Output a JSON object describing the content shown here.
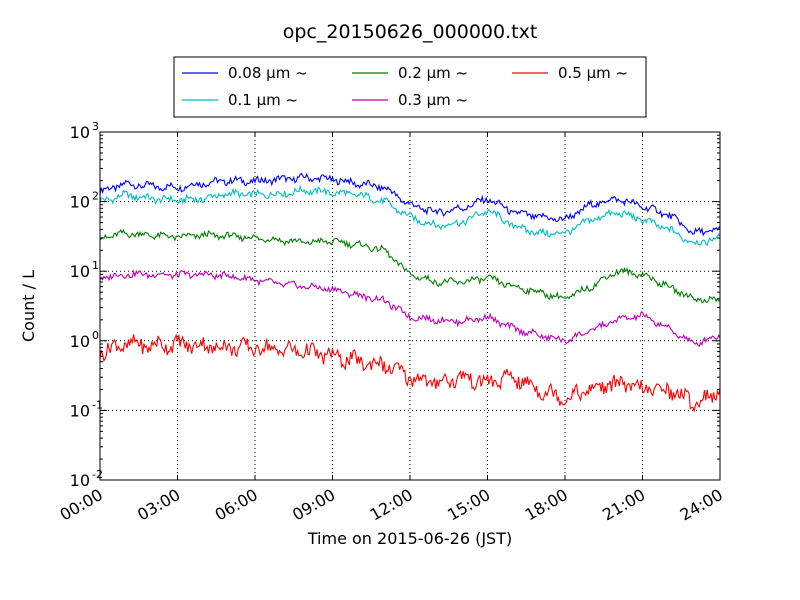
{
  "chart_data": {
    "type": "line",
    "title": "opc_20150626_000000.txt",
    "xlabel": "Time on 2015-06-26 (JST)",
    "ylabel": "Count / L",
    "y_scale": "log",
    "xlim": [
      "00:00",
      "24:00"
    ],
    "ylim": [
      0.01,
      1000
    ],
    "x_ticks": [
      "00:00",
      "03:00",
      "06:00",
      "09:00",
      "12:00",
      "15:00",
      "18:00",
      "21:00",
      "24:00"
    ],
    "y_ticks": [
      {
        "base": "10",
        "exp": "-2",
        "value": 0.01
      },
      {
        "base": "10",
        "exp": "-1",
        "value": 0.1
      },
      {
        "base": "10",
        "exp": "0",
        "value": 1
      },
      {
        "base": "10",
        "exp": "1",
        "value": 10
      },
      {
        "base": "10",
        "exp": "2",
        "value": 100
      },
      {
        "base": "10",
        "exp": "3",
        "value": 1000
      }
    ],
    "grid": true,
    "legend_position": "top-center",
    "x": [
      "00:00",
      "01:00",
      "02:00",
      "03:00",
      "04:00",
      "05:00",
      "06:00",
      "07:00",
      "08:00",
      "09:00",
      "10:00",
      "11:00",
      "12:00",
      "13:00",
      "14:00",
      "15:00",
      "16:00",
      "17:00",
      "18:00",
      "19:00",
      "20:00",
      "21:00",
      "22:00",
      "23:00",
      "24:00"
    ],
    "series": [
      {
        "name": "0.08 μm ~",
        "color": "#0000ff",
        "values": [
          140,
          180,
          165,
          160,
          185,
          200,
          195,
          210,
          220,
          210,
          180,
          160,
          90,
          70,
          80,
          110,
          70,
          60,
          55,
          90,
          110,
          85,
          65,
          35,
          40
        ]
      },
      {
        "name": "0.1 μm ~",
        "color": "#00bfbf",
        "values": [
          100,
          125,
          110,
          105,
          110,
          130,
          125,
          130,
          145,
          135,
          125,
          100,
          60,
          45,
          50,
          75,
          45,
          35,
          35,
          55,
          70,
          55,
          40,
          25,
          30
        ]
      },
      {
        "name": "0.2 μm ~",
        "color": "#008000",
        "values": [
          30,
          35,
          33,
          31,
          33,
          32,
          30,
          28,
          26,
          27,
          24,
          20,
          9,
          7,
          7,
          8,
          6,
          5,
          4,
          6,
          10,
          9,
          6,
          4,
          3.8
        ]
      },
      {
        "name": "0.3 μm ~",
        "color": "#bf00bf",
        "values": [
          8,
          9,
          9,
          8.8,
          9,
          8.5,
          7.5,
          6.5,
          6,
          5.5,
          4.5,
          3.8,
          2.2,
          2,
          1.9,
          2.2,
          1.5,
          1.2,
          1,
          1.4,
          2,
          2.3,
          1.5,
          0.9,
          1.2
        ]
      },
      {
        "name": "0.5 μm ~",
        "color": "#ff0000",
        "values": [
          0.7,
          0.9,
          0.85,
          0.9,
          0.85,
          0.8,
          0.8,
          0.75,
          0.7,
          0.6,
          0.5,
          0.45,
          0.3,
          0.25,
          0.3,
          0.25,
          0.3,
          0.2,
          0.15,
          0.2,
          0.25,
          0.2,
          0.2,
          0.13,
          0.18
        ]
      }
    ]
  }
}
